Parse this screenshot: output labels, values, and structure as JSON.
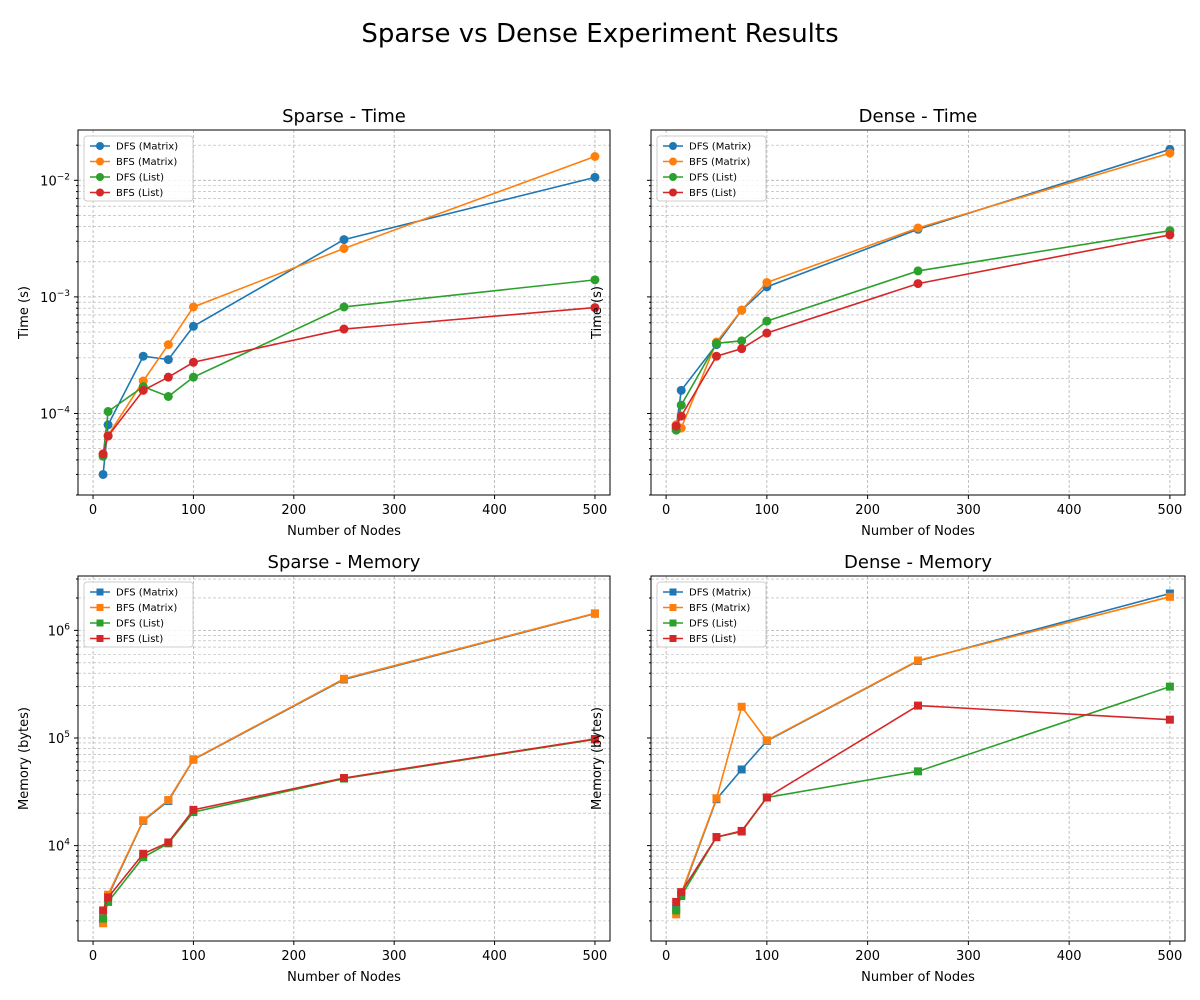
{
  "figure": {
    "title": "Sparse vs Dense Experiment Results"
  },
  "series_colors": {
    "DFS (Matrix)": "#1f77b4",
    "BFS (Matrix)": "#ff7f0e",
    "DFS (List)": "#2ca02c",
    "BFS (List)": "#d62728"
  },
  "chart_data": [
    {
      "type": "line",
      "title": "Sparse - Time",
      "xlabel": "Number of Nodes",
      "ylabel": "Time (s)",
      "xlim": [
        -15,
        515
      ],
      "xticks": [
        0,
        100,
        200,
        300,
        400,
        500
      ],
      "yscale": "log",
      "ylim": [
        2e-05,
        0.027
      ],
      "yticks_major": [
        0.0001,
        0.001,
        0.01
      ],
      "ytick_labels": [
        "10^-4",
        "10^-3",
        "10^-2"
      ],
      "marker": "circle",
      "grid": true,
      "legend_position": "upper left",
      "x": [
        10,
        15,
        50,
        75,
        100,
        250,
        500
      ],
      "series": [
        {
          "name": "DFS (Matrix)",
          "values": [
            3e-05,
            8e-05,
            0.00031,
            0.00029,
            0.00056,
            0.0031,
            0.0106
          ]
        },
        {
          "name": "BFS (Matrix)",
          "values": [
            4.5e-05,
            6.5e-05,
            0.00019,
            0.00039,
            0.00082,
            0.0026,
            0.016
          ]
        },
        {
          "name": "DFS (List)",
          "values": [
            4.3e-05,
            0.000104,
            0.00017,
            0.00014,
            0.000205,
            0.00082,
            0.0014
          ]
        },
        {
          "name": "BFS (List)",
          "values": [
            4.5e-05,
            6.4e-05,
            0.000158,
            0.000205,
            0.000275,
            0.00053,
            0.00081
          ]
        }
      ]
    },
    {
      "type": "line",
      "title": "Dense - Time",
      "xlabel": "Number of Nodes",
      "ylabel": "Time (s)",
      "xlim": [
        -15,
        515
      ],
      "xticks": [
        0,
        100,
        200,
        300,
        400,
        500
      ],
      "yscale": "log",
      "ylim": [
        2e-05,
        0.027
      ],
      "yticks_major": [
        0.0001,
        0.001,
        0.01
      ],
      "ytick_labels": [
        "",
        "",
        ""
      ],
      "marker": "circle",
      "grid": true,
      "legend_position": "upper left",
      "x": [
        10,
        15,
        50,
        75,
        100,
        250,
        500
      ],
      "series": [
        {
          "name": "DFS (Matrix)",
          "values": [
            7.5e-05,
            0.000158,
            0.00039,
            0.00077,
            0.00122,
            0.0038,
            0.0184
          ]
        },
        {
          "name": "BFS (Matrix)",
          "values": [
            8e-05,
            7.5e-05,
            0.00041,
            0.00077,
            0.00133,
            0.0039,
            0.0171
          ]
        },
        {
          "name": "DFS (List)",
          "values": [
            7.2e-05,
            0.000118,
            0.0004,
            0.00042,
            0.00062,
            0.00167,
            0.0037
          ]
        },
        {
          "name": "BFS (List)",
          "values": [
            7.8e-05,
            9.5e-05,
            0.00031,
            0.00036,
            0.00049,
            0.0013,
            0.0034
          ]
        }
      ]
    },
    {
      "type": "line",
      "title": "Sparse - Memory",
      "xlabel": "Number of Nodes",
      "ylabel": "Memory (bytes)",
      "xlim": [
        -15,
        515
      ],
      "xticks": [
        0,
        100,
        200,
        300,
        400,
        500
      ],
      "yscale": "log",
      "ylim": [
        1300,
        3200000
      ],
      "yticks_major": [
        10000,
        100000,
        1000000
      ],
      "ytick_labels": [
        "10^4",
        "10^5",
        "10^6"
      ],
      "marker": "square",
      "grid": true,
      "legend_position": "upper left",
      "x": [
        10,
        15,
        50,
        75,
        100,
        250,
        500
      ],
      "series": [
        {
          "name": "DFS (Matrix)",
          "values": [
            2000,
            3400,
            17000,
            26000,
            63000,
            350000,
            1430000
          ]
        },
        {
          "name": "BFS (Matrix)",
          "values": [
            1900,
            3500,
            17200,
            26500,
            63500,
            355000,
            1440000
          ]
        },
        {
          "name": "DFS (List)",
          "values": [
            2100,
            3000,
            7800,
            10500,
            20500,
            42000,
            97000
          ]
        },
        {
          "name": "BFS (List)",
          "values": [
            2500,
            3300,
            8400,
            10700,
            21500,
            42500,
            98000
          ]
        }
      ]
    },
    {
      "type": "line",
      "title": "Dense - Memory",
      "xlabel": "Number of Nodes",
      "ylabel": "Memory (bytes)",
      "xlim": [
        -15,
        515
      ],
      "xticks": [
        0,
        100,
        200,
        300,
        400,
        500
      ],
      "yscale": "log",
      "ylim": [
        1300,
        3200000
      ],
      "yticks_major": [
        10000,
        100000,
        1000000
      ],
      "ytick_labels": [
        "",
        "",
        ""
      ],
      "marker": "square",
      "grid": true,
      "legend_position": "upper left",
      "x": [
        10,
        15,
        50,
        75,
        100,
        250,
        500
      ],
      "series": [
        {
          "name": "DFS (Matrix)",
          "values": [
            2600,
            3500,
            27000,
            51000,
            94000,
            520000,
            2200000
          ]
        },
        {
          "name": "BFS (Matrix)",
          "values": [
            2300,
            3600,
            27500,
            195000,
            95000,
            525000,
            2050000
          ]
        },
        {
          "name": "DFS (List)",
          "values": [
            2500,
            3400,
            12000,
            13500,
            28000,
            49000,
            300000
          ]
        },
        {
          "name": "BFS (List)",
          "values": [
            3000,
            3700,
            12000,
            13700,
            28000,
            200000,
            148000
          ]
        }
      ]
    }
  ]
}
